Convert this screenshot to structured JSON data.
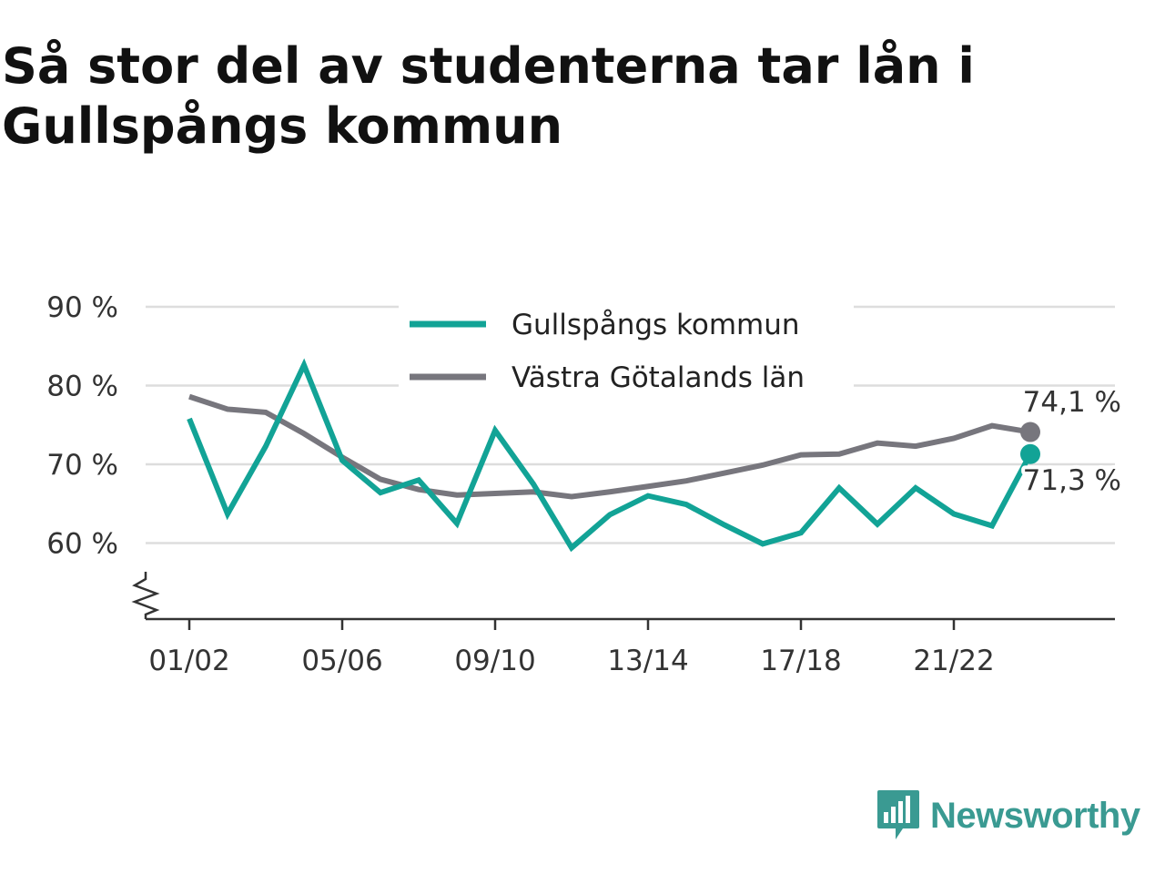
{
  "title": "Så stor del av studenterna tar lån i Gullspångs kommun",
  "colors": {
    "series_gullspang": "#12a396",
    "series_vastra": "#77767d",
    "grid": "#dddddd",
    "axis": "#333333",
    "text": "#333333",
    "brand": "#3a9a92"
  },
  "brand": {
    "name": "Newsworthy",
    "icon": "chart-speech-bubble-icon"
  },
  "chart_data": {
    "type": "line",
    "x": [
      "01/02",
      "02/03",
      "03/04",
      "04/05",
      "05/06",
      "06/07",
      "07/08",
      "08/09",
      "09/10",
      "10/11",
      "11/12",
      "12/13",
      "13/14",
      "14/15",
      "15/16",
      "16/17",
      "17/18",
      "18/19",
      "19/20",
      "20/21",
      "21/22",
      "22/23",
      "23/24"
    ],
    "x_tick_labels": [
      "01/02",
      "05/06",
      "09/10",
      "13/14",
      "17/18",
      "21/22"
    ],
    "y_tick_labels": [
      "60 %",
      "70 %",
      "80 %",
      "90 %"
    ],
    "y_ticks": [
      60,
      70,
      80,
      90
    ],
    "ylim": [
      50,
      90
    ],
    "grid": true,
    "y_axis_break": true,
    "legend_position": "top-center",
    "series": [
      {
        "name": "Gullspångs kommun",
        "color": "#12a396",
        "values": [
          75.8,
          63.7,
          72.3,
          82.6,
          70.5,
          66.4,
          68.0,
          62.5,
          74.3,
          67.5,
          59.4,
          63.6,
          66.0,
          64.9,
          62.3,
          59.9,
          61.3,
          67.0,
          62.4,
          67.0,
          63.7,
          62.2,
          71.3
        ],
        "end_label": "71,3 %"
      },
      {
        "name": "Västra Götalands län",
        "color": "#77767d",
        "values": [
          78.6,
          77.0,
          76.6,
          73.9,
          70.9,
          68.1,
          66.8,
          66.1,
          66.3,
          66.5,
          65.9,
          66.5,
          67.2,
          67.9,
          68.9,
          69.9,
          71.2,
          71.3,
          72.7,
          72.3,
          73.3,
          74.9,
          74.1
        ],
        "end_label": "74,1 %"
      }
    ]
  }
}
